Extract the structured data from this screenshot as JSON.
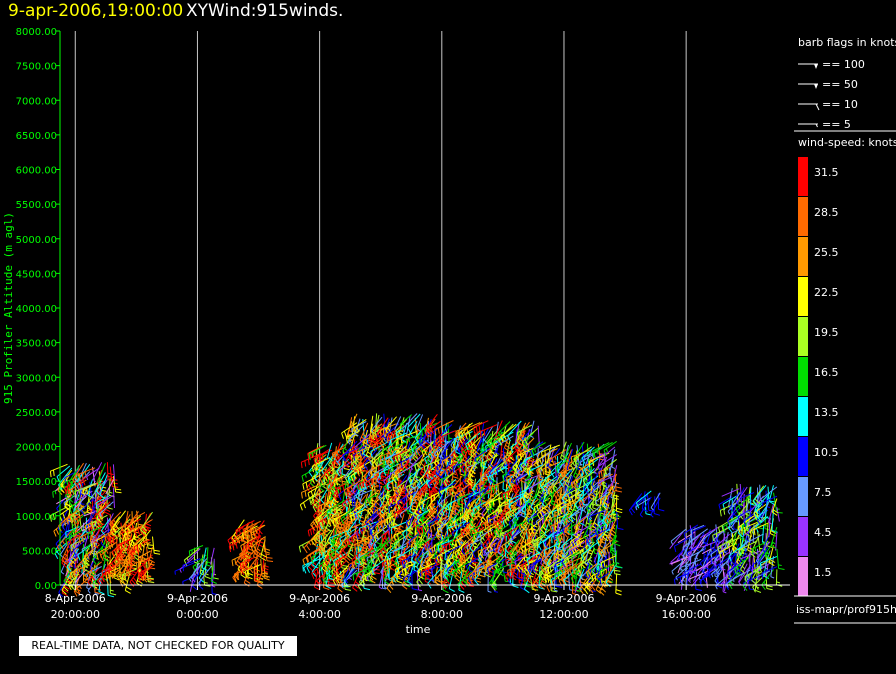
{
  "title": {
    "datetime": "9-apr-2006,19:00:00",
    "name": "XYWind:915winds."
  },
  "chart_data": {
    "type": "scatter",
    "subtype": "wind-barb time-height",
    "ylabel": "915 Profiler Altitude (m agl)",
    "xlabel": "time",
    "ylim": [
      0,
      8000
    ],
    "y_ticks": [
      "0.00",
      "500.00",
      "1000.00",
      "1500.00",
      "2000.00",
      "2500.00",
      "3000.00",
      "3500.00",
      "4000.00",
      "4500.00",
      "5000.00",
      "5500.00",
      "6000.00",
      "6500.00",
      "7000.00",
      "7500.00",
      "8000.00"
    ],
    "x_range_hours": [
      -4.5,
      19.4
    ],
    "x_ticks": [
      {
        "hour": -4,
        "date": "8-Apr-2006",
        "time": "20:00:00"
      },
      {
        "hour": 0,
        "date": "9-Apr-2006",
        "time": "0:00:00"
      },
      {
        "hour": 4,
        "date": "9-Apr-2006",
        "time": "4:00:00"
      },
      {
        "hour": 8,
        "date": "9-Apr-2006",
        "time": "8:00:00"
      },
      {
        "hour": 12,
        "date": "9-Apr-2006",
        "time": "12:00:00"
      },
      {
        "hour": 16,
        "date": "9-Apr-2006",
        "time": "16:00:00"
      }
    ],
    "grid": "vertical lines at x ticks",
    "wind_clusters": [
      {
        "t0": -4.3,
        "t1": -2.7,
        "hmin": 100,
        "hmax": 1800,
        "smin": 2,
        "smax": 33
      },
      {
        "t0": -2.7,
        "t1": -1.4,
        "hmin": 200,
        "hmax": 1100,
        "smin": 20,
        "smax": 33
      },
      {
        "t0": -0.1,
        "t1": 0.6,
        "hmin": 150,
        "hmax": 600,
        "smin": 4,
        "smax": 20
      },
      {
        "t0": 1.5,
        "t1": 2.3,
        "hmin": 250,
        "hmax": 1000,
        "smin": 22,
        "smax": 33
      },
      {
        "t0": 3.9,
        "t1": 5.0,
        "hmin": 200,
        "hmax": 2100,
        "smin": 12,
        "smax": 33
      },
      {
        "t0": 5.0,
        "t1": 8.0,
        "hmin": 200,
        "hmax": 2500,
        "smin": 5,
        "smax": 33
      },
      {
        "t0": 8.0,
        "t1": 11.2,
        "hmin": 200,
        "hmax": 2400,
        "smin": 5,
        "smax": 33
      },
      {
        "t0": 11.2,
        "t1": 13.8,
        "hmin": 150,
        "hmax": 2100,
        "smin": 3,
        "smax": 30
      },
      {
        "t0": 14.5,
        "t1": 15.2,
        "hmin": 1250,
        "hmax": 1380,
        "smin": 8,
        "smax": 14
      },
      {
        "t0": 15.9,
        "t1": 17.5,
        "hmin": 150,
        "hmax": 900,
        "smin": 2,
        "smax": 12
      },
      {
        "t0": 17.5,
        "t1": 19.0,
        "hmin": 150,
        "hmax": 1500,
        "smin": 3,
        "smax": 22
      }
    ]
  },
  "legend": {
    "barb_title": "barb flags in knots",
    "barb_items": [
      {
        "label": "== 100",
        "kind": "pennant"
      },
      {
        "label": "== 50",
        "kind": "pennant"
      },
      {
        "label": "== 10",
        "kind": "full"
      },
      {
        "label": "== 5",
        "kind": "half"
      }
    ],
    "speed_title": "wind-speed: knots",
    "speed_bins": [
      {
        "label": "31.5",
        "color": "#ff0000"
      },
      {
        "label": "28.5",
        "color": "#ff6a00"
      },
      {
        "label": "25.5",
        "color": "#ff9900"
      },
      {
        "label": "22.5",
        "color": "#ffff00"
      },
      {
        "label": "19.5",
        "color": "#aaff22"
      },
      {
        "label": "16.5",
        "color": "#00dd00"
      },
      {
        "label": "13.5",
        "color": "#00ffff"
      },
      {
        "label": "10.5",
        "color": "#0000ff"
      },
      {
        "label": "7.5",
        "color": "#6699ff"
      },
      {
        "label": "4.5",
        "color": "#9933ff"
      },
      {
        "label": "1.5",
        "color": "#ee88ee"
      }
    ],
    "source": "iss-mapr/prof915h"
  },
  "qc_note": "REAL-TIME DATA, NOT CHECKED FOR QUALITY",
  "colors": {
    "axis": "#00ff00",
    "grid": "#c8c8c8",
    "title_date": "#ffff00"
  }
}
